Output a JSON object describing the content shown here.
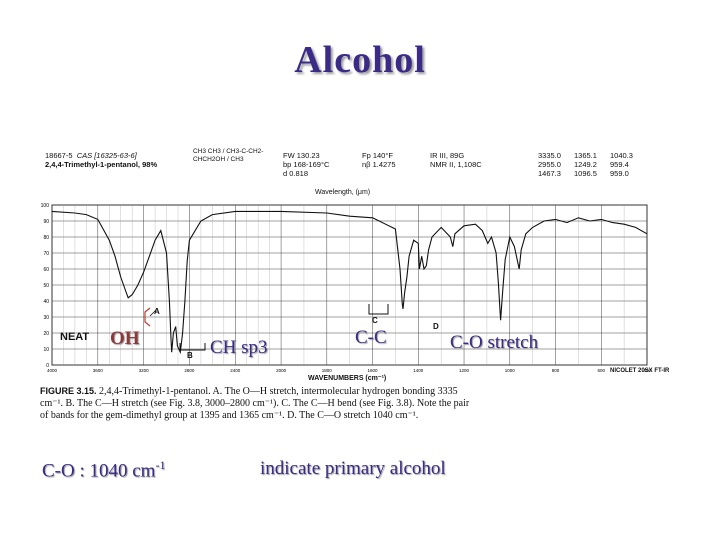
{
  "title": "Alcohol",
  "spectrum_header": {
    "catalog": "18667-5",
    "cas": "CAS [16325-63-6]",
    "compound": "2,4,4-Trimethyl-1-pentanol, 98%",
    "structure": "CH3 CH3 / CH3-C-CH2-CHCH2OH / CH3",
    "fw": "FW 130.23",
    "bp": "bp 168-169°C",
    "d": "d 0.818",
    "fp": "Fp 140°F",
    "nd": "nβ 1.4275",
    "ir_ref": "IR III, 89G",
    "nmr_ref": "NMR II, 1,108C",
    "peaks_col1": [
      "3335.0",
      "2955.0",
      "1467.3"
    ],
    "peaks_col2": [
      "1365.1",
      "1249.2",
      "1096.5"
    ],
    "peaks_col3": [
      "1040.3",
      "959.4",
      "959.0"
    ],
    "wavelength_label": "Wavelength, (μm)",
    "wavenumber_label": "WAVENUMBERS (cm⁻¹)",
    "instrument": "NICOLET 20SX FT-IR",
    "sample": "NEAT"
  },
  "peak_labels": {
    "a": "A",
    "b": "B",
    "c": "C",
    "d": "D"
  },
  "annotations": {
    "oh": "OH",
    "ch": "CH sp3",
    "cc": "C-C",
    "co": "C-O stretch"
  },
  "caption": {
    "figure": "FIGURE 3.15.",
    "text": "2,4,4-Trimethyl-1-pentanol. A. The O—H stretch, intermolecular hydrogen bonding 3335 cm⁻¹. B. The C—H stretch (see Fig. 3.8, 3000–2800 cm⁻¹). C. The C—H bend (see Fig. 3.8). Note the pair of bands for the gem-dimethyl group at 1395 and 1365 cm⁻¹. D. The C—O stretch 1040 cm⁻¹."
  },
  "bottom": {
    "left_prefix": "C-O : 1040 cm",
    "left_sup": "-1",
    "right": "indicate primary alcohol"
  },
  "chart_data": {
    "type": "line",
    "xlabel": "WAVENUMBERS (cm⁻¹)",
    "ylabel": "",
    "x_reversed": true,
    "xlim": [
      4000,
      400
    ],
    "ylim": [
      0,
      100
    ],
    "x_ticks": [
      4000,
      3600,
      3200,
      2800,
      2400,
      2000,
      1800,
      1600,
      1400,
      1200,
      1000,
      800,
      600,
      400
    ],
    "y_ticks": [
      0,
      10,
      20,
      30,
      40,
      50,
      60,
      70,
      80,
      90,
      100
    ],
    "grid": true,
    "series": [
      {
        "x": [
          4000,
          3800,
          3700,
          3600,
          3500,
          3450,
          3400,
          3350,
          3335,
          3300,
          3250,
          3200,
          3150,
          3100,
          3050,
          3000,
          2975,
          2960,
          2955,
          2940,
          2920,
          2905,
          2880,
          2860,
          2840,
          2820,
          2800,
          2700,
          2600,
          2400,
          2200,
          2000,
          1800,
          1700,
          1600,
          1500,
          1480,
          1470,
          1467,
          1460,
          1450,
          1440,
          1420,
          1400,
          1395,
          1385,
          1375,
          1365,
          1355,
          1340,
          1300,
          1260,
          1249,
          1240,
          1200,
          1150,
          1120,
          1096,
          1080,
          1060,
          1050,
          1040,
          1030,
          1020,
          1000,
          980,
          965,
          959,
          950,
          930,
          900,
          850,
          800,
          750,
          700,
          650,
          600,
          550,
          500,
          450,
          400
        ],
        "y": [
          96,
          95,
          94,
          91,
          78,
          68,
          55,
          45,
          42,
          44,
          50,
          58,
          68,
          78,
          84,
          70,
          40,
          15,
          8,
          20,
          24,
          12,
          8,
          20,
          40,
          65,
          78,
          90,
          94,
          96,
          96,
          96,
          95,
          93,
          92,
          85,
          60,
          38,
          35,
          45,
          55,
          68,
          78,
          76,
          60,
          68,
          60,
          62,
          72,
          80,
          86,
          80,
          74,
          82,
          87,
          88,
          84,
          76,
          80,
          70,
          52,
          28,
          48,
          66,
          80,
          74,
          64,
          60,
          72,
          82,
          86,
          90,
          91,
          89,
          92,
          90,
          91,
          89,
          88,
          86,
          82
        ]
      }
    ]
  }
}
